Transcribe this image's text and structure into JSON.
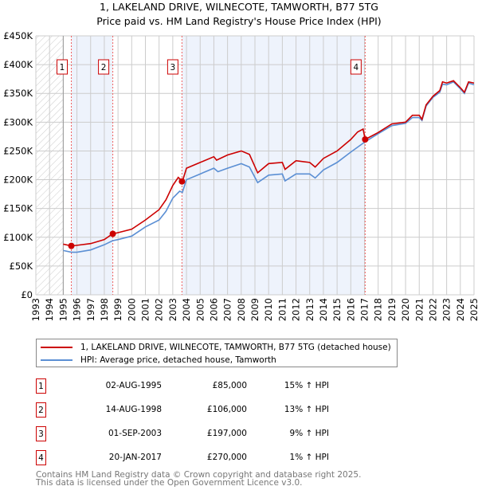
{
  "title": "1, LAKELAND DRIVE, WILNECOTE, TAMWORTH, B77 5TG",
  "subtitle": "Price paid vs. HM Land Registry's House Price Index (HPI)",
  "chart_data": {
    "type": "line",
    "xlim": [
      1993,
      2025
    ],
    "ylim": [
      0,
      450000
    ],
    "x_ticks": [
      "1993",
      "1994",
      "1995",
      "1996",
      "1997",
      "1998",
      "1999",
      "2000",
      "2001",
      "2002",
      "2003",
      "2004",
      "2005",
      "2006",
      "2007",
      "2008",
      "2009",
      "2010",
      "2011",
      "2012",
      "2013",
      "2014",
      "2015",
      "2016",
      "2017",
      "2018",
      "2019",
      "2020",
      "2021",
      "2022",
      "2023",
      "2024",
      "2025"
    ],
    "y_ticks": [
      {
        "v": 0,
        "label": "£0"
      },
      {
        "v": 50000,
        "label": "£50K"
      },
      {
        "v": 100000,
        "label": "£100K"
      },
      {
        "v": 150000,
        "label": "£150K"
      },
      {
        "v": 200000,
        "label": "£200K"
      },
      {
        "v": 250000,
        "label": "£250K"
      },
      {
        "v": 300000,
        "label": "£300K"
      },
      {
        "v": 350000,
        "label": "£350K"
      },
      {
        "v": 400000,
        "label": "£400K"
      },
      {
        "v": 450000,
        "label": "£450K"
      }
    ],
    "grid": true,
    "series": [
      {
        "name": "1, LAKELAND DRIVE, WILNECOTE, TAMWORTH, B77 5TG (detached house)",
        "color": "#cc0000",
        "x": [
          1995.0,
          1995.6,
          1996,
          1997,
          1998,
          1998.6,
          1999,
          2000,
          2001,
          2002,
          2002.5,
          2003,
          2003.4,
          2003.7,
          2004,
          2005,
          2006,
          2006.2,
          2007,
          2008,
          2008.6,
          2009.2,
          2010,
          2011,
          2011.2,
          2012,
          2013,
          2013.4,
          2014,
          2015,
          2016,
          2016.5,
          2016.9,
          2017.05,
          2018,
          2019,
          2020,
          2020.5,
          2021,
          2021.2,
          2021.5,
          2022,
          2022.5,
          2022.7,
          2023,
          2023.5,
          2024,
          2024.3,
          2024.6,
          2025
        ],
        "y": [
          88000,
          85000,
          86000,
          89000,
          96000,
          106000,
          108000,
          114000,
          130000,
          148000,
          165000,
          190000,
          204000,
          197000,
          220000,
          230000,
          240000,
          234000,
          243000,
          250000,
          244000,
          212000,
          228000,
          230000,
          218000,
          233000,
          230000,
          222000,
          237000,
          250000,
          270000,
          283000,
          288000,
          270000,
          282000,
          297000,
          300000,
          312000,
          312000,
          305000,
          330000,
          345000,
          355000,
          370000,
          368000,
          372000,
          360000,
          352000,
          370000,
          368000
        ]
      },
      {
        "name": "HPI: Average price, detached house, Tamworth",
        "color": "#5b8fd4",
        "x": [
          1995.0,
          1995.6,
          1996,
          1997,
          1998,
          1998.6,
          1999,
          2000,
          2001,
          2002,
          2002.5,
          2003,
          2003.5,
          2003.7,
          2004,
          2005,
          2006,
          2006.3,
          2007,
          2008,
          2008.6,
          2009.2,
          2010,
          2011,
          2011.2,
          2012,
          2013,
          2013.4,
          2014,
          2015,
          2016,
          2017.05,
          2018,
          2019,
          2020,
          2020.5,
          2021,
          2021.2,
          2021.5,
          2022,
          2022.5,
          2022.7,
          2023,
          2023.5,
          2024,
          2024.3,
          2024.6,
          2025
        ],
        "y": [
          77000,
          74000,
          74000,
          78000,
          87000,
          94000,
          96000,
          102000,
          118000,
          130000,
          145000,
          168000,
          180000,
          178000,
          200000,
          210000,
          220000,
          214000,
          220000,
          228000,
          222000,
          195000,
          208000,
          210000,
          198000,
          210000,
          210000,
          203000,
          217000,
          230000,
          248000,
          266000,
          280000,
          294000,
          298000,
          308000,
          308000,
          303000,
          328000,
          343000,
          352000,
          366000,
          365000,
          370000,
          358000,
          350000,
          368000,
          365000
        ]
      }
    ],
    "sales": [
      {
        "n": "1",
        "x": 1995.59,
        "y": 85000,
        "date": "02-AUG-1995",
        "price": "£85,000",
        "hpi": "15% ↑ HPI"
      },
      {
        "n": "2",
        "x": 1998.62,
        "y": 106000,
        "date": "14-AUG-1998",
        "price": "£106,000",
        "hpi": "13% ↑ HPI"
      },
      {
        "n": "3",
        "x": 2003.67,
        "y": 197000,
        "date": "01-SEP-2003",
        "price": "£197,000",
        "hpi": "9% ↑ HPI"
      },
      {
        "n": "4",
        "x": 2017.05,
        "y": 270000,
        "date": "20-JAN-2017",
        "price": "£270,000",
        "hpi": "1% ↑ HPI"
      }
    ]
  },
  "legend": {
    "price": "1, LAKELAND DRIVE, WILNECOTE, TAMWORTH, B77 5TG (detached house)",
    "hpi": "HPI: Average price, detached house, Tamworth"
  },
  "footer": {
    "line1": "Contains HM Land Registry data © Crown copyright and database right 2025.",
    "line2": "This data is licensed under the Open Government Licence v3.0."
  }
}
